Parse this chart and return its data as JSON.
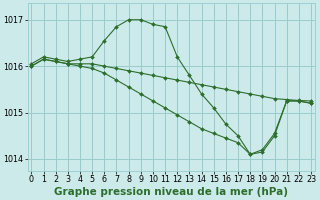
{
  "title": "Graphe pression niveau de la mer (hPa)",
  "xlabel_hours": [
    0,
    1,
    2,
    3,
    4,
    5,
    6,
    7,
    8,
    9,
    10,
    11,
    12,
    13,
    14,
    15,
    16,
    17,
    18,
    19,
    20,
    21,
    22,
    23
  ],
  "series1": {
    "x": [
      0,
      1,
      2,
      3,
      4,
      5,
      6,
      7,
      8,
      9,
      10,
      11,
      12,
      13,
      14,
      15,
      16,
      17,
      18,
      19,
      20,
      21,
      22,
      23
    ],
    "y": [
      1016.05,
      1016.2,
      1016.15,
      1016.1,
      1016.15,
      1016.2,
      1016.55,
      1016.85,
      1017.0,
      1017.0,
      1016.9,
      1016.85,
      1016.2,
      1015.8,
      1015.4,
      1015.1,
      1014.75,
      1014.5,
      1014.1,
      1014.2,
      1014.55,
      1015.25,
      1015.25,
      1015.2
    ]
  },
  "series2": {
    "x": [
      0,
      1,
      2,
      3,
      4,
      5,
      6,
      7,
      8,
      9,
      10,
      11,
      12,
      13,
      14,
      15,
      16,
      17,
      18,
      19,
      20,
      21,
      22,
      23
    ],
    "y": [
      1016.0,
      1016.15,
      1016.1,
      1016.05,
      1016.05,
      1016.05,
      1016.0,
      1015.95,
      1015.9,
      1015.85,
      1015.8,
      1015.75,
      1015.7,
      1015.65,
      1015.6,
      1015.55,
      1015.5,
      1015.45,
      1015.4,
      1015.35,
      1015.3,
      1015.28,
      1015.26,
      1015.25
    ]
  },
  "series3": {
    "x": [
      0,
      1,
      2,
      3,
      4,
      5,
      6,
      7,
      8,
      9,
      10,
      11,
      12,
      13,
      14,
      15,
      16,
      17,
      18,
      19,
      20,
      21,
      22,
      23
    ],
    "y": [
      1016.0,
      1016.15,
      1016.1,
      1016.05,
      1016.0,
      1015.95,
      1015.85,
      1015.7,
      1015.55,
      1015.4,
      1015.25,
      1015.1,
      1014.95,
      1014.8,
      1014.65,
      1014.55,
      1014.45,
      1014.35,
      1014.1,
      1014.15,
      1014.5,
      1015.25,
      1015.25,
      1015.2
    ]
  },
  "line_color": "#2d6e2d",
  "marker": "D",
  "marker_size": 2.0,
  "bg_color": "#cceaea",
  "grid_color": "#99cccc",
  "ylim": [
    1013.75,
    1017.35
  ],
  "yticks": [
    1014,
    1015,
    1016,
    1017
  ],
  "xlim": [
    -0.3,
    23.3
  ],
  "title_fontsize": 7.5,
  "tick_fontsize": 5.8
}
